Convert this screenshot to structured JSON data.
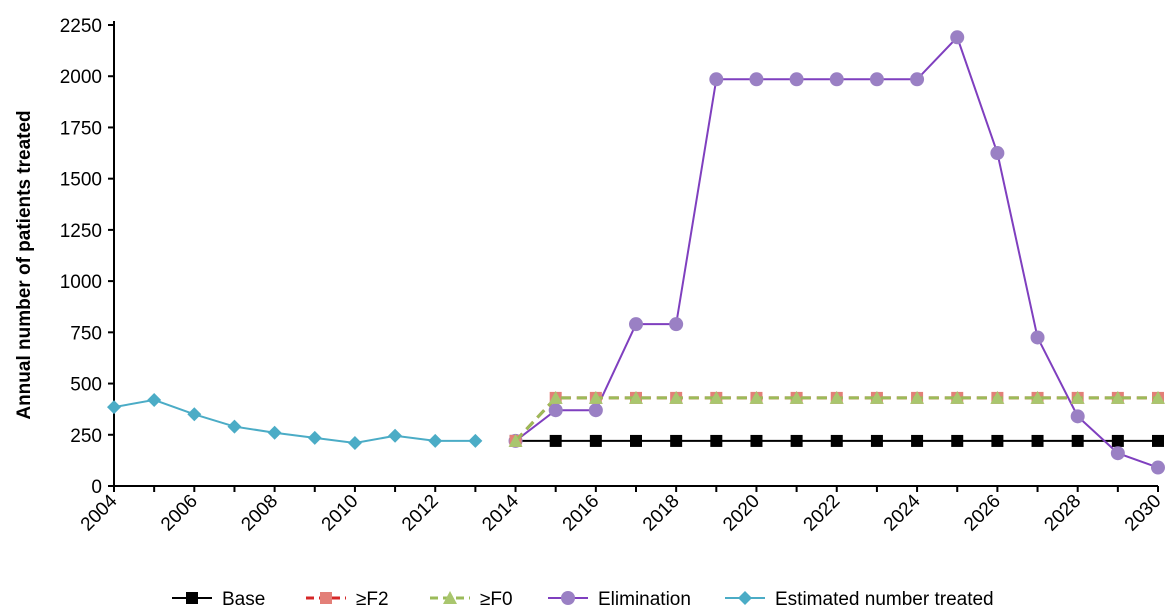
{
  "chart_data": {
    "type": "line",
    "title": "",
    "xlabel": "",
    "ylabel": "Annual number of patients treated",
    "xlim": [
      2004,
      2030
    ],
    "ylim": [
      0,
      2250
    ],
    "x_ticks": [
      "2004",
      "2006",
      "2008",
      "2010",
      "2012",
      "2014",
      "2016",
      "2018",
      "2020",
      "2022",
      "2024",
      "2026",
      "2028",
      "2030"
    ],
    "y_ticks": [
      "0",
      "250",
      "500",
      "750",
      "1000",
      "1250",
      "1500",
      "1750",
      "2000",
      "2250"
    ],
    "grid": false,
    "legend_position": "bottom",
    "series": [
      {
        "name": "Base",
        "color": "#000000",
        "marker": "square",
        "dash": "solid",
        "x": [
          2014,
          2015,
          2016,
          2017,
          2018,
          2019,
          2020,
          2021,
          2022,
          2023,
          2024,
          2025,
          2026,
          2027,
          2028,
          2029,
          2030
        ],
        "y": [
          220,
          220,
          220,
          220,
          220,
          220,
          220,
          220,
          220,
          220,
          220,
          220,
          220,
          220,
          220,
          220,
          220
        ]
      },
      {
        "name": "≥F2",
        "color": "#d62728",
        "marker_color": "#e37f78",
        "marker": "square",
        "dash": "dashed",
        "x": [
          2014,
          2015,
          2016,
          2017,
          2018,
          2019,
          2020,
          2021,
          2022,
          2023,
          2024,
          2025,
          2026,
          2027,
          2028,
          2029,
          2030
        ],
        "y": [
          220,
          430,
          430,
          430,
          430,
          430,
          430,
          430,
          430,
          430,
          430,
          430,
          430,
          430,
          430,
          430,
          430
        ]
      },
      {
        "name": "≥F0",
        "color": "#9bbb59",
        "marker_color": "#a9c66e",
        "marker": "triangle",
        "dash": "dashed",
        "x": [
          2014,
          2015,
          2016,
          2017,
          2018,
          2019,
          2020,
          2021,
          2022,
          2023,
          2024,
          2025,
          2026,
          2027,
          2028,
          2029,
          2030
        ],
        "y": [
          220,
          430,
          430,
          430,
          430,
          430,
          430,
          430,
          430,
          430,
          430,
          430,
          430,
          430,
          430,
          430,
          430
        ]
      },
      {
        "name": "Elimination",
        "color": "#7f3fbf",
        "marker_color": "#9a80c4",
        "marker": "circle",
        "dash": "solid",
        "x": [
          2014,
          2015,
          2016,
          2017,
          2018,
          2019,
          2020,
          2021,
          2022,
          2023,
          2024,
          2025,
          2026,
          2027,
          2028,
          2029,
          2030
        ],
        "y": [
          220,
          370,
          370,
          790,
          790,
          1985,
          1985,
          1985,
          1985,
          1985,
          1985,
          2190,
          1625,
          725,
          340,
          160,
          90
        ]
      },
      {
        "name": "Estimated number treated",
        "color": "#4bacc6",
        "marker_color": "#4bacc6",
        "marker": "diamond",
        "dash": "solid",
        "x": [
          2004,
          2005,
          2006,
          2007,
          2008,
          2009,
          2010,
          2011,
          2012,
          2013
        ],
        "y": [
          385,
          420,
          350,
          290,
          260,
          235,
          210,
          245,
          220,
          220
        ]
      }
    ]
  }
}
